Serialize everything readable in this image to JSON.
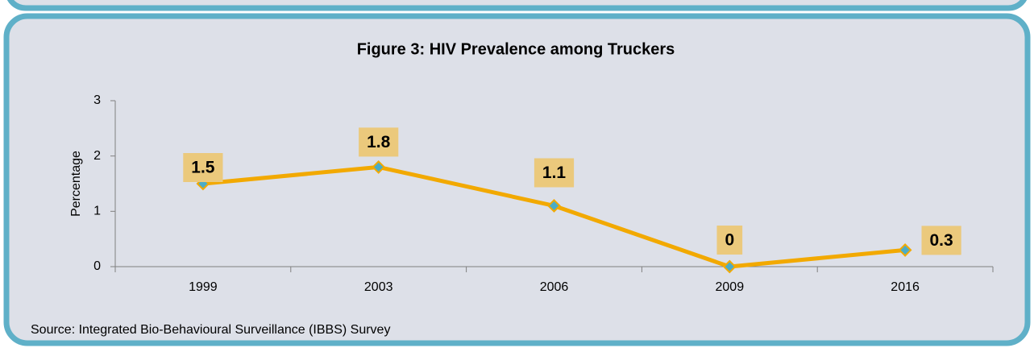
{
  "chart_data": {
    "type": "line",
    "title": "Figure 3: HIV Prevalence among Truckers",
    "y_label": "Percentage",
    "categories": [
      "1999",
      "2003",
      "2006",
      "2009",
      "2016"
    ],
    "values": [
      1.5,
      1.8,
      1.1,
      0,
      0.3
    ],
    "color": "#f2a900",
    "marker_color": "#4bacc6",
    "label_box_color": "#ebc97c",
    "ylim": [
      0,
      3
    ],
    "yticks": [
      0,
      1,
      2,
      3
    ],
    "grid": false,
    "source": "Source: Integrated Bio-Behavioural Surveillance (IBBS) Survey"
  }
}
